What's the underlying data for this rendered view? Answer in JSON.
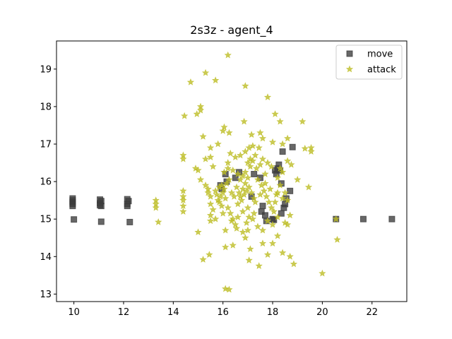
{
  "chart_data": {
    "type": "scatter",
    "title": "2s3z - agent_4",
    "xlabel": "",
    "ylabel": "",
    "xlim": [
      9.3,
      23.4
    ],
    "ylim": [
      12.8,
      19.75
    ],
    "xticks": [
      10,
      12,
      14,
      16,
      18,
      20,
      22
    ],
    "yticks": [
      13,
      14,
      15,
      16,
      17,
      18,
      19
    ],
    "grid": false,
    "legend_position": "top-right",
    "series": [
      {
        "name": "move",
        "marker": "square",
        "color": "#3c3c3c",
        "points": [
          [
            9.95,
            15.55
          ],
          [
            9.95,
            15.5
          ],
          [
            9.95,
            15.45
          ],
          [
            9.95,
            15.4
          ],
          [
            9.95,
            15.35
          ],
          [
            10.0,
            14.99
          ],
          [
            11.05,
            15.52
          ],
          [
            11.1,
            15.48
          ],
          [
            11.05,
            15.42
          ],
          [
            11.05,
            15.37
          ],
          [
            11.1,
            15.35
          ],
          [
            11.1,
            14.93
          ],
          [
            12.15,
            15.53
          ],
          [
            12.2,
            15.48
          ],
          [
            12.15,
            15.4
          ],
          [
            12.15,
            15.35
          ],
          [
            12.25,
            14.92
          ],
          [
            15.9,
            15.9
          ],
          [
            15.95,
            15.8
          ],
          [
            16.15,
            16.0
          ],
          [
            16.1,
            16.2
          ],
          [
            16.5,
            16.1
          ],
          [
            16.65,
            16.25
          ],
          [
            17.15,
            15.6
          ],
          [
            17.25,
            16.2
          ],
          [
            17.5,
            16.1
          ],
          [
            17.55,
            15.2
          ],
          [
            17.6,
            15.35
          ],
          [
            17.7,
            15.1
          ],
          [
            17.75,
            14.95
          ],
          [
            18.0,
            15.0
          ],
          [
            18.05,
            14.98
          ],
          [
            18.1,
            16.3
          ],
          [
            18.15,
            16.2
          ],
          [
            18.2,
            16.35
          ],
          [
            18.25,
            16.45
          ],
          [
            18.3,
            16.3
          ],
          [
            18.35,
            15.15
          ],
          [
            18.35,
            15.95
          ],
          [
            18.4,
            16.8
          ],
          [
            18.45,
            15.3
          ],
          [
            18.5,
            15.4
          ],
          [
            18.55,
            15.55
          ],
          [
            18.7,
            15.75
          ],
          [
            18.8,
            16.92
          ],
          [
            20.55,
            15.0
          ],
          [
            21.65,
            15.0
          ],
          [
            22.8,
            15.0
          ]
        ]
      },
      {
        "name": "attack",
        "marker": "star",
        "color": "#bcbd22",
        "points": [
          [
            13.3,
            15.5
          ],
          [
            13.3,
            15.4
          ],
          [
            13.3,
            15.3
          ],
          [
            13.4,
            14.92
          ],
          [
            14.4,
            15.75
          ],
          [
            14.4,
            15.6
          ],
          [
            14.4,
            15.5
          ],
          [
            14.4,
            15.35
          ],
          [
            14.4,
            15.2
          ],
          [
            14.4,
            16.7
          ],
          [
            14.4,
            16.6
          ],
          [
            14.45,
            17.75
          ],
          [
            14.7,
            18.65
          ],
          [
            14.95,
            17.8
          ],
          [
            15.1,
            18.0
          ],
          [
            15.1,
            17.9
          ],
          [
            15.3,
            18.9
          ],
          [
            15.7,
            18.7
          ],
          [
            16.2,
            19.37
          ],
          [
            16.9,
            18.55
          ],
          [
            17.8,
            18.25
          ],
          [
            18.1,
            17.8
          ],
          [
            18.3,
            17.6
          ],
          [
            19.2,
            17.6
          ],
          [
            15.2,
            17.2
          ],
          [
            15.5,
            16.9
          ],
          [
            15.8,
            17.0
          ],
          [
            16.0,
            17.35
          ],
          [
            16.05,
            17.45
          ],
          [
            16.25,
            17.3
          ],
          [
            16.85,
            17.6
          ],
          [
            17.15,
            17.25
          ],
          [
            17.5,
            17.3
          ],
          [
            17.6,
            17.15
          ],
          [
            18.0,
            17.05
          ],
          [
            18.4,
            17.0
          ],
          [
            18.6,
            17.15
          ],
          [
            19.3,
            16.88
          ],
          [
            19.55,
            16.9
          ],
          [
            19.55,
            16.8
          ],
          [
            14.9,
            16.35
          ],
          [
            15.0,
            16.3
          ],
          [
            15.3,
            16.6
          ],
          [
            15.5,
            16.65
          ],
          [
            15.6,
            16.4
          ],
          [
            15.1,
            16.05
          ],
          [
            15.3,
            15.9
          ],
          [
            15.4,
            15.8
          ],
          [
            15.4,
            15.7
          ],
          [
            15.5,
            15.6
          ],
          [
            15.5,
            15.4
          ],
          [
            15.6,
            15.25
          ],
          [
            15.5,
            15.1
          ],
          [
            15.5,
            14.95
          ],
          [
            15.7,
            15.0
          ],
          [
            15.8,
            15.5
          ],
          [
            15.9,
            15.6
          ],
          [
            16.0,
            15.7
          ],
          [
            16.1,
            15.55
          ],
          [
            16.2,
            15.3
          ],
          [
            16.3,
            15.15
          ],
          [
            16.4,
            15.0
          ],
          [
            16.5,
            14.85
          ],
          [
            16.6,
            15.4
          ],
          [
            16.7,
            15.6
          ],
          [
            16.8,
            15.8
          ],
          [
            16.9,
            15.95
          ],
          [
            17.0,
            16.1
          ],
          [
            17.1,
            16.4
          ],
          [
            17.2,
            16.55
          ],
          [
            17.3,
            16.7
          ],
          [
            16.2,
            16.5
          ],
          [
            16.3,
            16.75
          ],
          [
            16.5,
            16.65
          ],
          [
            16.7,
            16.7
          ],
          [
            16.9,
            16.8
          ],
          [
            17.05,
            16.9
          ],
          [
            17.2,
            16.95
          ],
          [
            17.45,
            16.9
          ],
          [
            17.6,
            16.6
          ],
          [
            17.8,
            16.5
          ],
          [
            17.95,
            16.4
          ],
          [
            18.2,
            16.1
          ],
          [
            18.3,
            15.9
          ],
          [
            18.5,
            15.7
          ],
          [
            18.6,
            15.5
          ],
          [
            18.4,
            15.55
          ],
          [
            18.2,
            15.7
          ],
          [
            17.9,
            15.8
          ],
          [
            17.7,
            15.95
          ],
          [
            17.5,
            15.65
          ],
          [
            17.3,
            15.45
          ],
          [
            17.0,
            15.3
          ],
          [
            16.8,
            15.2
          ],
          [
            16.6,
            15.05
          ],
          [
            16.95,
            14.9
          ],
          [
            17.2,
            15.0
          ],
          [
            17.4,
            14.8
          ],
          [
            17.6,
            14.7
          ],
          [
            17.8,
            14.95
          ],
          [
            18.0,
            14.85
          ],
          [
            18.2,
            15.05
          ],
          [
            18.5,
            14.9
          ],
          [
            18.6,
            14.85
          ],
          [
            18.7,
            15.1
          ],
          [
            15.0,
            14.65
          ],
          [
            16.1,
            14.7
          ],
          [
            16.1,
            14.25
          ],
          [
            16.4,
            14.3
          ],
          [
            16.9,
            14.5
          ],
          [
            17.1,
            14.2
          ],
          [
            17.6,
            14.35
          ],
          [
            17.8,
            14.05
          ],
          [
            18.0,
            14.35
          ],
          [
            18.4,
            14.1
          ],
          [
            18.7,
            14.0
          ],
          [
            18.85,
            13.8
          ],
          [
            17.05,
            13.9
          ],
          [
            17.45,
            13.75
          ],
          [
            15.2,
            13.92
          ],
          [
            15.45,
            14.05
          ],
          [
            16.1,
            13.14
          ],
          [
            16.25,
            13.12
          ],
          [
            20.0,
            13.55
          ],
          [
            20.6,
            14.45
          ],
          [
            20.55,
            15.0
          ],
          [
            19.45,
            15.85
          ],
          [
            19.0,
            16.05
          ],
          [
            18.75,
            16.45
          ],
          [
            18.6,
            16.55
          ],
          [
            15.85,
            15.85
          ],
          [
            15.95,
            15.9
          ],
          [
            16.05,
            15.8
          ],
          [
            16.15,
            15.95
          ],
          [
            16.25,
            16.05
          ],
          [
            16.35,
            15.7
          ],
          [
            16.45,
            15.6
          ],
          [
            16.55,
            15.85
          ],
          [
            16.65,
            15.7
          ],
          [
            16.75,
            15.5
          ],
          [
            16.85,
            15.65
          ],
          [
            16.95,
            15.75
          ],
          [
            17.05,
            15.85
          ],
          [
            17.15,
            15.7
          ],
          [
            17.25,
            15.55
          ],
          [
            15.7,
            15.75
          ],
          [
            15.75,
            15.65
          ],
          [
            15.85,
            15.45
          ],
          [
            15.95,
            15.35
          ],
          [
            16.0,
            15.15
          ],
          [
            16.6,
            16.2
          ],
          [
            16.7,
            16.05
          ],
          [
            16.8,
            16.15
          ],
          [
            16.9,
            16.25
          ],
          [
            17.4,
            16.05
          ],
          [
            17.55,
            15.9
          ],
          [
            17.65,
            15.75
          ],
          [
            17.75,
            15.6
          ],
          [
            17.85,
            15.45
          ],
          [
            17.95,
            15.3
          ],
          [
            18.05,
            15.2
          ],
          [
            18.1,
            15.45
          ],
          [
            18.15,
            15.65
          ],
          [
            18.3,
            16.35
          ],
          [
            18.4,
            16.25
          ],
          [
            17.0,
            16.5
          ],
          [
            17.1,
            16.6
          ],
          [
            17.35,
            16.35
          ],
          [
            17.5,
            16.45
          ],
          [
            17.7,
            16.2
          ],
          [
            16.05,
            16.25
          ],
          [
            16.2,
            16.35
          ],
          [
            16.4,
            16.3
          ],
          [
            17.05,
            15.05
          ],
          [
            17.25,
            15.15
          ],
          [
            16.35,
            14.95
          ],
          [
            16.55,
            14.75
          ],
          [
            16.8,
            14.65
          ],
          [
            17.0,
            14.7
          ],
          [
            18.2,
            14.55
          ]
        ]
      }
    ]
  }
}
